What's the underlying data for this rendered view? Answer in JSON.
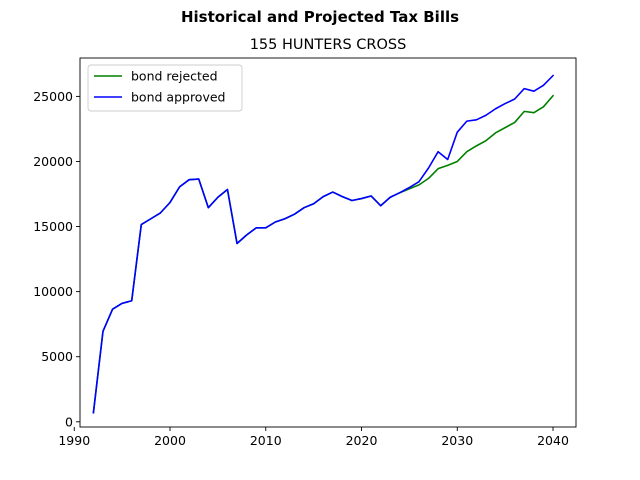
{
  "chart_data": {
    "type": "line",
    "suptitle": "Historical and Projected Tax Bills",
    "title": "155 HUNTERS CROSS",
    "xlabel": "",
    "ylabel": "",
    "xlim": [
      1990.6,
      2042.4
    ],
    "ylim": [
      -400,
      27950
    ],
    "xticks": [
      1990,
      2000,
      2010,
      2020,
      2030,
      2040
    ],
    "yticks": [
      0,
      5000,
      10000,
      15000,
      20000,
      25000
    ],
    "legend_position": "upper-left",
    "grid": false,
    "series": [
      {
        "name": "bond rejected",
        "color": "#008000",
        "x": [
          1992,
          1993,
          1994,
          1995,
          1996,
          1997,
          1998,
          1999,
          2000,
          2001,
          2002,
          2003,
          2004,
          2005,
          2006,
          2007,
          2008,
          2009,
          2010,
          2011,
          2012,
          2013,
          2014,
          2015,
          2016,
          2017,
          2018,
          2019,
          2020,
          2021,
          2022,
          2023,
          2024,
          2025,
          2026,
          2027,
          2028,
          2029,
          2030,
          2031,
          2032,
          2033,
          2034,
          2035,
          2036,
          2037,
          2038,
          2039,
          2040
        ],
        "y": [
          700,
          6950,
          8650,
          9100,
          9300,
          15150,
          15600,
          16050,
          16850,
          18050,
          18600,
          18650,
          16450,
          17250,
          17850,
          13700,
          14350,
          14900,
          14900,
          15350,
          15600,
          15950,
          16450,
          16750,
          17300,
          17650,
          17300,
          17000,
          17150,
          17350,
          16600,
          17250,
          17600,
          17900,
          18200,
          18700,
          19450,
          19700,
          20000,
          20750,
          21200,
          21600,
          22200,
          22600,
          23000,
          23850,
          23750,
          24200,
          25050
        ]
      },
      {
        "name": "bond approved",
        "color": "#0000ff",
        "x": [
          1992,
          1993,
          1994,
          1995,
          1996,
          1997,
          1998,
          1999,
          2000,
          2001,
          2002,
          2003,
          2004,
          2005,
          2006,
          2007,
          2008,
          2009,
          2010,
          2011,
          2012,
          2013,
          2014,
          2015,
          2016,
          2017,
          2018,
          2019,
          2020,
          2021,
          2022,
          2023,
          2024,
          2025,
          2026,
          2027,
          2028,
          2029,
          2030,
          2031,
          2032,
          2033,
          2034,
          2035,
          2036,
          2037,
          2038,
          2039,
          2040
        ],
        "y": [
          700,
          6950,
          8650,
          9100,
          9300,
          15150,
          15600,
          16050,
          16850,
          18050,
          18600,
          18650,
          16450,
          17250,
          17850,
          13700,
          14350,
          14900,
          14900,
          15350,
          15600,
          15950,
          16450,
          16750,
          17300,
          17650,
          17300,
          17000,
          17150,
          17350,
          16600,
          17250,
          17600,
          18000,
          18450,
          19500,
          20750,
          20150,
          22250,
          23100,
          23200,
          23550,
          24050,
          24450,
          24800,
          25600,
          25400,
          25850,
          26600
        ]
      }
    ]
  }
}
